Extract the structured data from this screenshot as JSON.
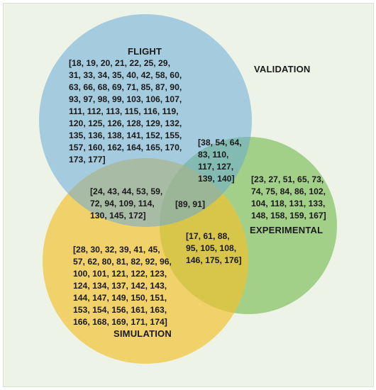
{
  "colors": {
    "background": "#eef3e8",
    "flight": "#6aaad6",
    "experimental": "#7fc05a",
    "simulation": "#f2c12e"
  },
  "sets": {
    "flight": "FLIGHT",
    "validation": "VALIDATION",
    "experimental": "EXPERIMENTAL",
    "simulation": "SIMULATION"
  },
  "regions": {
    "flight_only": "[18, 19, 20, 21, 22, 25, 29,\n31, 33, 34, 35, 40, 42, 58, 60,\n63, 66, 68, 69, 71, 85, 87, 90,\n93, 97, 98, 99, 103, 106, 107,\n111, 112, 113, 115, 116, 119,\n120, 125, 126, 128, 129, 132,\n135, 136, 138, 141, 152, 155,\n157, 160, 162, 164, 165, 170,\n173, 177]",
    "flight_experimental": "[38, 54, 64,\n83, 110,\n117, 127,\n139, 140]",
    "experimental_only": "[23, 27, 51, 65, 73,\n74, 75, 84, 86, 102,\n104, 118, 131, 133,\n148, 158, 159, 167]",
    "flight_simulation": "[24, 43, 44, 53, 59,\n72, 94, 109, 114,\n130, 145, 172]",
    "all_three": "[89, 91]",
    "experimental_simulation": "[17, 61, 88,\n95, 105, 108,\n146, 175, 176]",
    "simulation_only": "[28, 30, 32, 39, 41, 45,\n57, 62, 80, 81, 82, 92, 96,\n100, 101, 121, 122, 123,\n124, 134, 137, 142, 143,\n144, 147, 149, 150, 151,\n153, 154, 156, 161, 163,\n166, 168, 169, 171, 174]"
  }
}
